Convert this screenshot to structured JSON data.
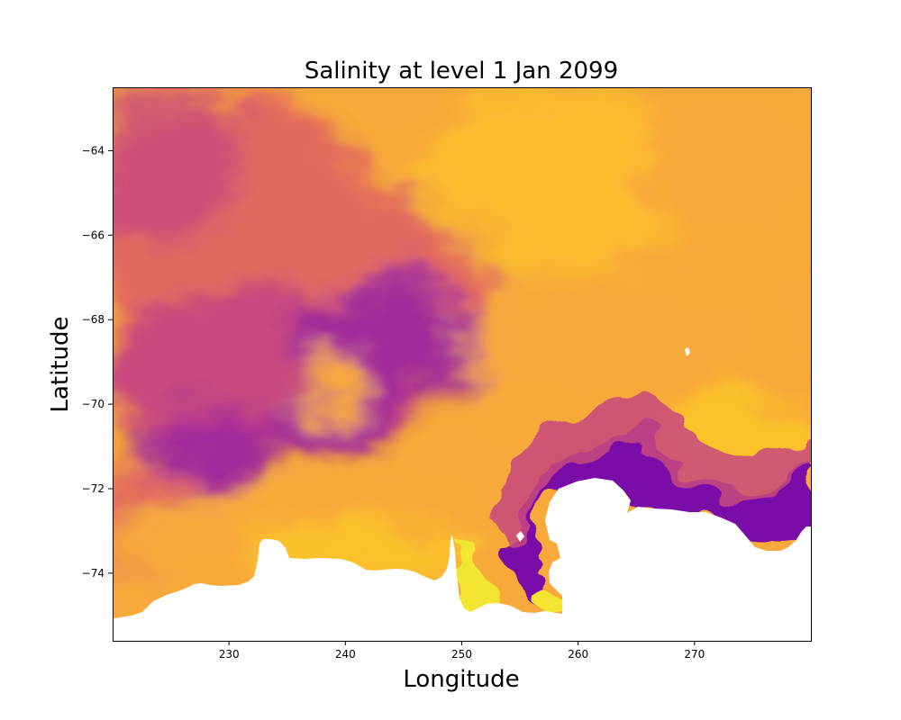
{
  "chart_data": {
    "type": "heatmap",
    "title": "Salinity at level 1 Jan 2099",
    "xlabel": "Longitude",
    "ylabel": "Latitude",
    "xlim": [
      220,
      280
    ],
    "ylim": [
      -75.6,
      -62.5
    ],
    "xticks": [
      {
        "value": 230,
        "label": "230"
      },
      {
        "value": 240,
        "label": "240"
      },
      {
        "value": 250,
        "label": "250"
      },
      {
        "value": 260,
        "label": "260"
      },
      {
        "value": 270,
        "label": "270"
      }
    ],
    "yticks": [
      {
        "value": -64,
        "label": "−64"
      },
      {
        "value": -66,
        "label": "−66"
      },
      {
        "value": -68,
        "label": "−68"
      },
      {
        "value": -70,
        "label": "−70"
      },
      {
        "value": -72,
        "label": "−72"
      },
      {
        "value": -74,
        "label": "−74"
      }
    ],
    "colormap": "plasma",
    "colors": [
      "#7a0ea8",
      "#a32c9a",
      "#c8487e",
      "#e26a5e",
      "#f08f48",
      "#f7a93a",
      "#fbc22c",
      "#f3e630"
    ],
    "grid": false,
    "legend": "none",
    "land_color": "#ffffff"
  }
}
